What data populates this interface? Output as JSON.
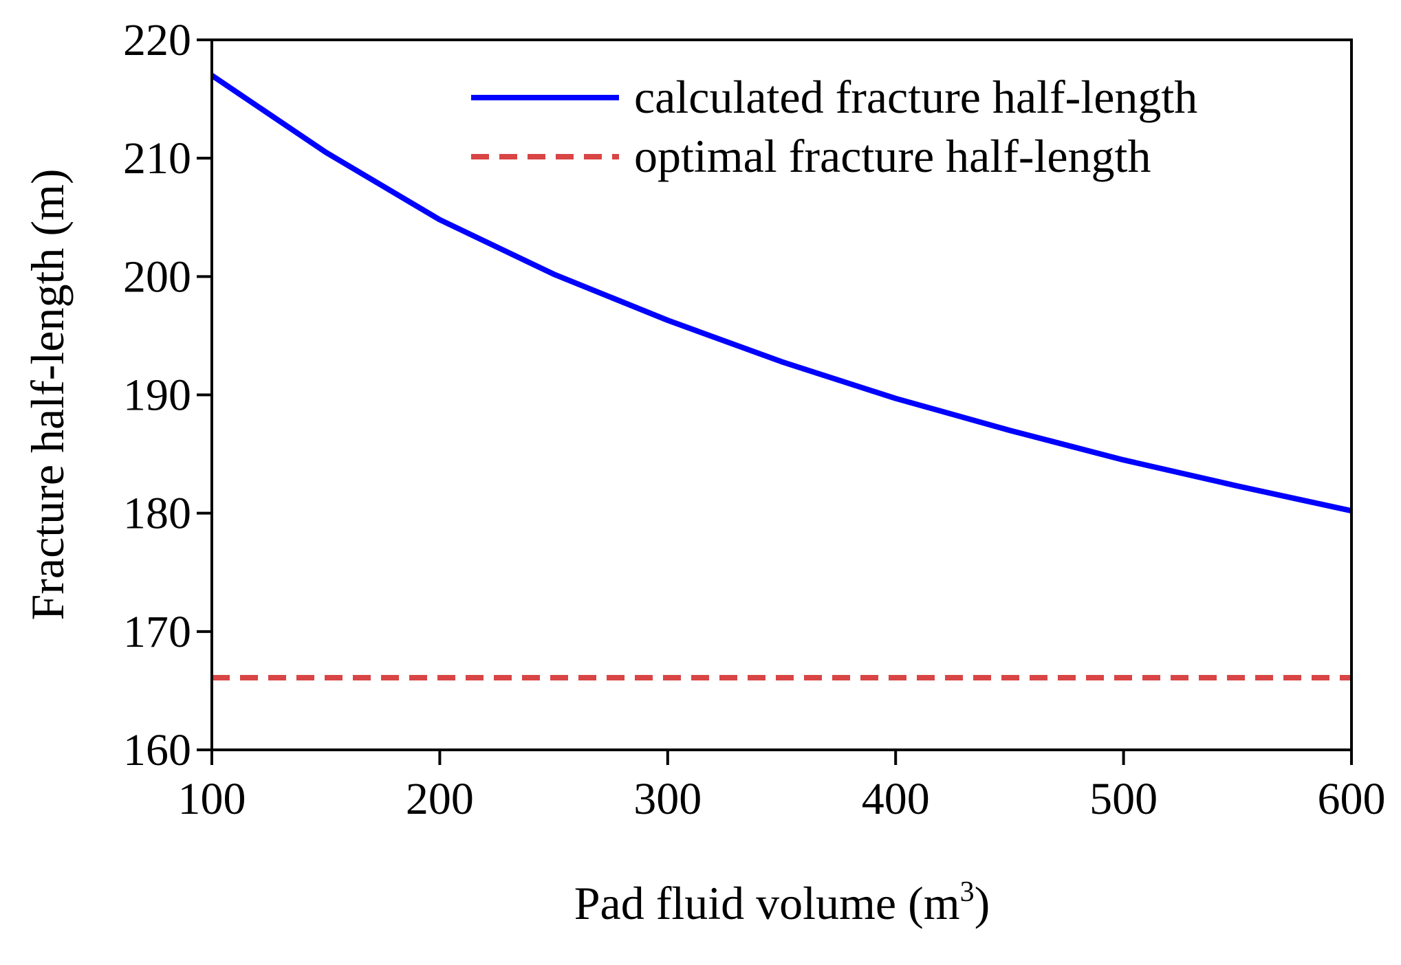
{
  "chart_data": {
    "type": "line",
    "title": "",
    "xlabel": "Pad fluid volume (m",
    "xlabel_superscript": "3",
    "xlabel_suffix": ")",
    "ylabel": "Fracture half-length (m)",
    "xlim": [
      100,
      600
    ],
    "ylim": [
      160,
      220
    ],
    "x_ticks": [
      100,
      200,
      300,
      400,
      500,
      600
    ],
    "y_ticks": [
      160,
      170,
      180,
      190,
      200,
      210,
      220
    ],
    "x_tick_labels": [
      "100",
      "200",
      "300",
      "400",
      "500",
      "600"
    ],
    "y_tick_labels": [
      "160",
      "170",
      "180",
      "190",
      "200",
      "210",
      "220"
    ],
    "grid": false,
    "legend_position": "top-right",
    "series": [
      {
        "name": "calculated fracture half-length",
        "color": "#0000ff",
        "style": "solid",
        "x": [
          100,
          150,
          200,
          250,
          300,
          350,
          400,
          450,
          500,
          550,
          600
        ],
        "y": [
          217.0,
          210.5,
          204.8,
          200.2,
          196.3,
          192.8,
          189.7,
          187.0,
          184.5,
          182.3,
          180.2
        ]
      },
      {
        "name": "optimal fracture half-length",
        "color": "#d94545",
        "style": "dashed",
        "x": [
          100,
          600
        ],
        "y": [
          166.1,
          166.1
        ]
      }
    ]
  }
}
